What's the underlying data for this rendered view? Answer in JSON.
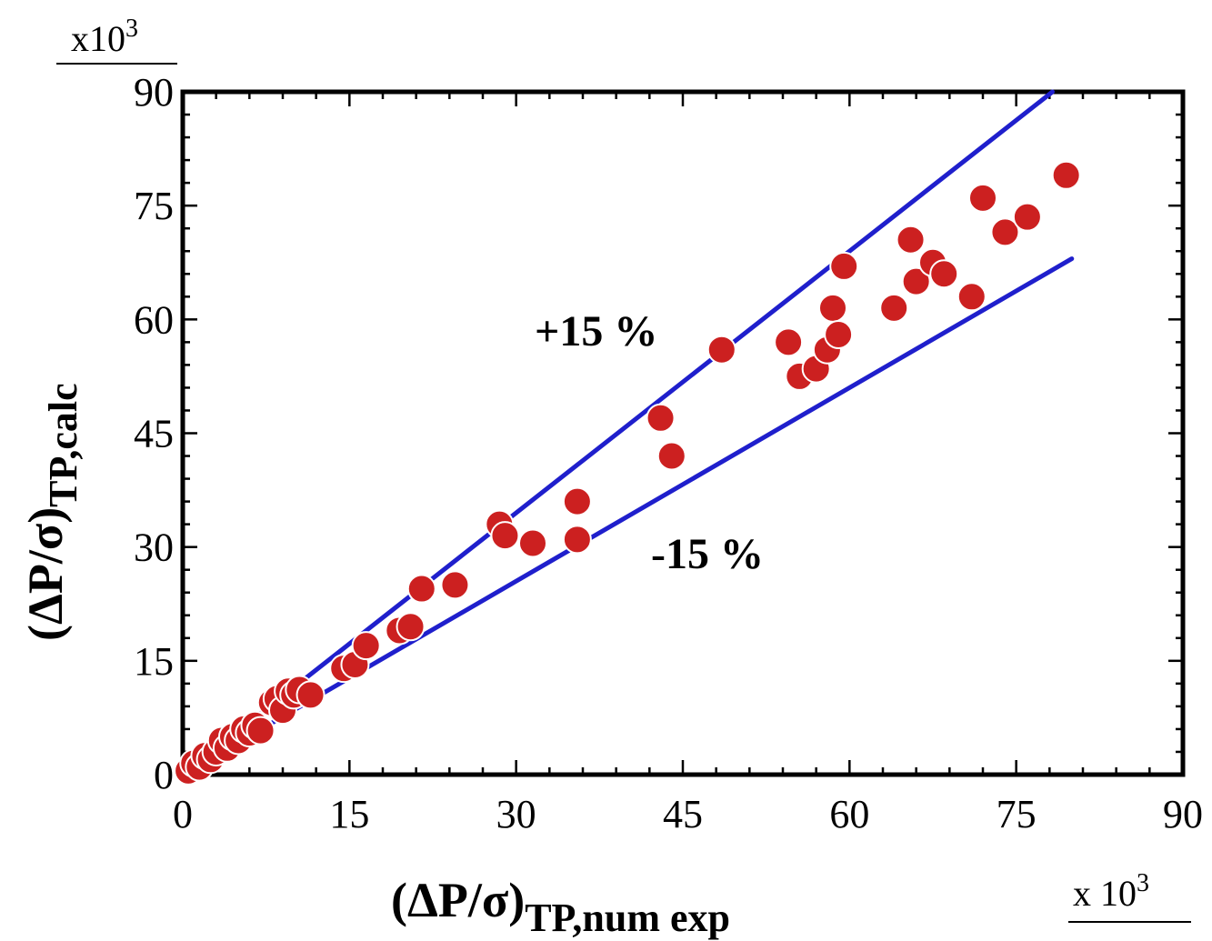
{
  "chart_data": {
    "type": "scatter",
    "xlabel": {
      "main": "(ΔP/σ)",
      "sub": "TP,num exp"
    },
    "ylabel": {
      "main": "(ΔP/σ)",
      "sub": "TP,calc"
    },
    "x_multiplier": {
      "prefix": "x 10",
      "exp": "3"
    },
    "y_multiplier": {
      "prefix": "x10",
      "exp": "3"
    },
    "xlim": [
      0,
      90
    ],
    "ylim": [
      0,
      90
    ],
    "xticks": [
      "0",
      "15",
      "30",
      "45",
      "60",
      "75",
      "90"
    ],
    "yticks": [
      "0",
      "15",
      "30",
      "45",
      "60",
      "75",
      "90"
    ],
    "grid": false,
    "reference_lines": [
      {
        "label": "+15 %",
        "slope": 1.15,
        "x_range": [
          0,
          80
        ],
        "color": "#1f1fcc"
      },
      {
        "label": "-15 %",
        "slope": 0.85,
        "x_range": [
          0,
          80
        ],
        "color": "#1f1fcc"
      }
    ],
    "marker_color": "#cc2020",
    "points": [
      [
        0.5,
        0.5
      ],
      [
        1.0,
        1.5
      ],
      [
        1.5,
        1.0
      ],
      [
        2.0,
        2.5
      ],
      [
        2.5,
        2.0
      ],
      [
        3.0,
        3.0
      ],
      [
        3.5,
        4.5
      ],
      [
        4.0,
        3.5
      ],
      [
        4.5,
        5.0
      ],
      [
        5.0,
        4.5
      ],
      [
        5.5,
        6.0
      ],
      [
        6.0,
        5.5
      ],
      [
        6.5,
        6.5
      ],
      [
        7.0,
        5.8
      ],
      [
        8.0,
        9.5
      ],
      [
        8.5,
        10.0
      ],
      [
        9.0,
        8.5
      ],
      [
        9.5,
        11.0
      ],
      [
        10.0,
        10.5
      ],
      [
        10.5,
        11.2
      ],
      [
        11.5,
        10.5
      ],
      [
        14.5,
        14.0
      ],
      [
        15.5,
        14.5
      ],
      [
        16.5,
        17.0
      ],
      [
        19.5,
        19.0
      ],
      [
        20.5,
        19.5
      ],
      [
        21.5,
        24.5
      ],
      [
        24.5,
        25.0
      ],
      [
        28.5,
        33.0
      ],
      [
        29.0,
        31.5
      ],
      [
        31.5,
        30.5
      ],
      [
        35.5,
        36.0
      ],
      [
        35.5,
        31.0
      ],
      [
        43.0,
        47.0
      ],
      [
        44.0,
        42.0
      ],
      [
        48.5,
        56.0
      ],
      [
        54.5,
        57.0
      ],
      [
        55.5,
        52.5
      ],
      [
        57.0,
        53.5
      ],
      [
        58.0,
        56.0
      ],
      [
        58.5,
        61.5
      ],
      [
        59.0,
        58.0
      ],
      [
        59.5,
        67.0
      ],
      [
        64.0,
        61.5
      ],
      [
        65.5,
        70.5
      ],
      [
        66.0,
        65.0
      ],
      [
        67.5,
        67.5
      ],
      [
        68.5,
        66.0
      ],
      [
        71.0,
        63.0
      ],
      [
        72.0,
        76.0
      ],
      [
        74.0,
        71.5
      ],
      [
        76.0,
        73.5
      ],
      [
        79.5,
        79.0
      ]
    ]
  }
}
